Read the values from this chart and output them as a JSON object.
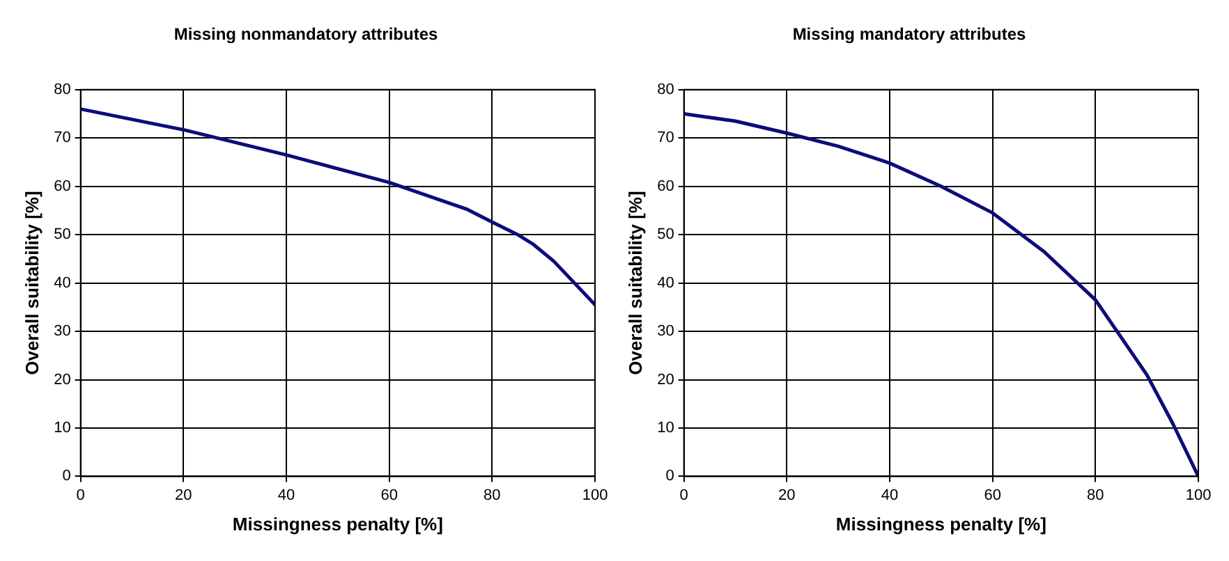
{
  "chart_data": [
    {
      "type": "line",
      "title": "Missing nonmandatory attributes",
      "xlabel": "Missingness penalty [%]",
      "ylabel": "Overall suitability [%]",
      "xlim": [
        0,
        100
      ],
      "xticks": [
        0,
        20,
        40,
        60,
        80,
        100
      ],
      "ylim": [
        0,
        80
      ],
      "yticks": [
        0,
        10,
        20,
        30,
        40,
        50,
        60,
        70,
        80
      ],
      "grid": true,
      "legend": false,
      "marker": "none",
      "line_style": "solid",
      "series": [
        {
          "color": "#0c0c7a",
          "x": [
            0,
            20,
            40,
            60,
            75,
            80,
            85,
            88,
            92,
            100
          ],
          "values": [
            76,
            71.7,
            66.5,
            60.8,
            55.3,
            52.6,
            50,
            48,
            44.5,
            35.5
          ]
        }
      ]
    },
    {
      "type": "line",
      "title": "Missing mandatory attributes",
      "xlabel": "Missingness penalty [%]",
      "ylabel": "Overall suitability [%]",
      "xlim": [
        0,
        100
      ],
      "xticks": [
        0,
        20,
        40,
        60,
        80,
        100
      ],
      "ylim": [
        0,
        80
      ],
      "yticks": [
        0,
        10,
        20,
        30,
        40,
        50,
        60,
        70,
        80
      ],
      "grid": true,
      "legend": false,
      "marker": "none",
      "line_style": "solid",
      "series": [
        {
          "color": "#0c0c7a",
          "x": [
            0,
            10,
            20,
            30,
            40,
            50,
            60,
            70,
            80,
            90,
            95,
            100
          ],
          "values": [
            75,
            73.5,
            71,
            68.3,
            64.8,
            60,
            54.5,
            46.5,
            36.5,
            21,
            11,
            0
          ]
        }
      ]
    }
  ]
}
